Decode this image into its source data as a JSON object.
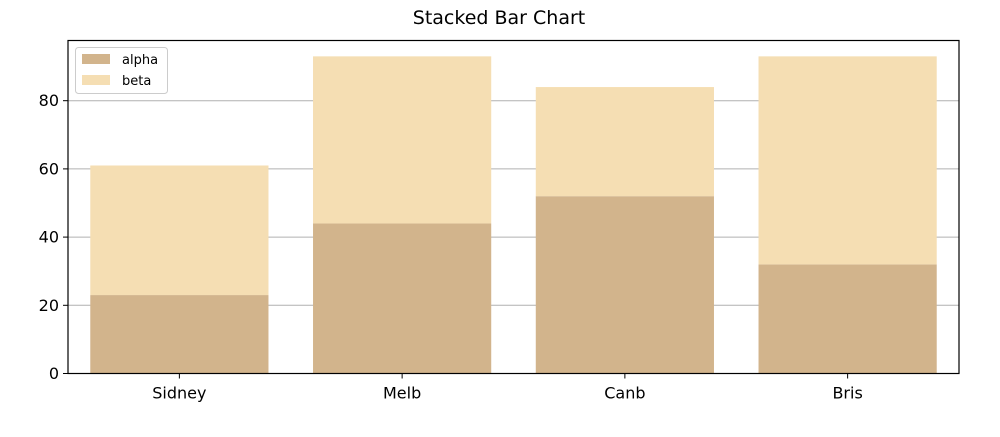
{
  "chart_data": {
    "type": "bar",
    "stacked": true,
    "title": "Stacked Bar Chart",
    "xlabel": "",
    "ylabel": "",
    "categories": [
      "Sidney",
      "Melb",
      "Canb",
      "Bris"
    ],
    "series": [
      {
        "name": "alpha",
        "values": [
          23,
          44,
          52,
          32
        ],
        "color": "#d2b48c"
      },
      {
        "name": "beta",
        "values": [
          38,
          49,
          32,
          61
        ],
        "color": "#f5deb3"
      }
    ],
    "ylim": [
      0,
      97.65
    ],
    "yticks": [
      0,
      20,
      40,
      60,
      80
    ],
    "grid": {
      "y": true,
      "x": false
    },
    "legend_position": "top-left"
  }
}
